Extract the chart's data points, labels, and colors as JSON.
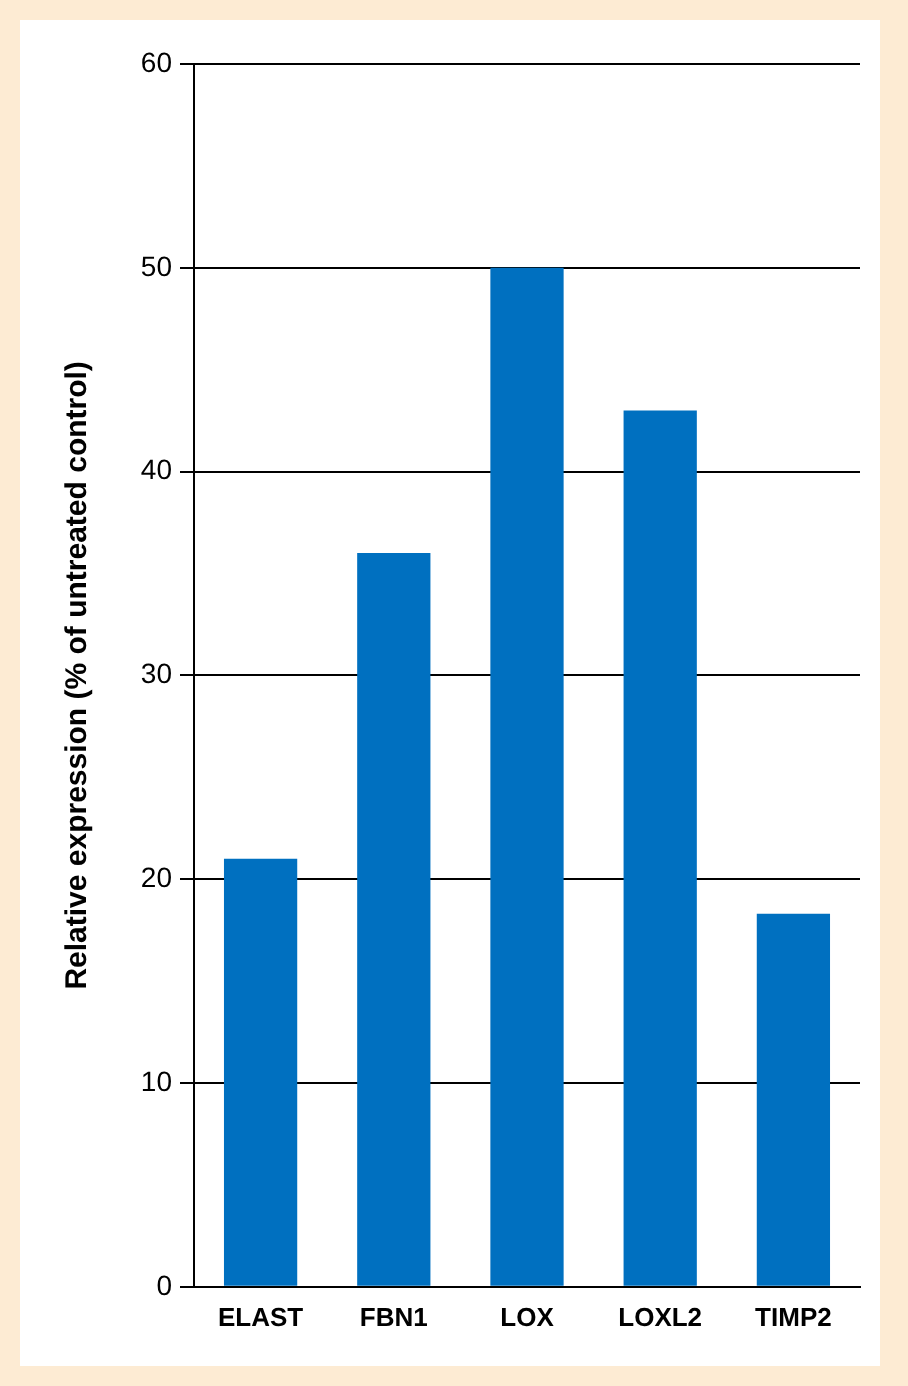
{
  "chart_data": {
    "type": "bar",
    "ylabel": "Relative expression (% of untreated control)",
    "categories": [
      "ELAST",
      "FBN1",
      "LOX",
      "LOXL2",
      "TIMP2"
    ],
    "values": [
      21,
      36,
      50,
      43,
      18.3
    ],
    "color": "#0070c0",
    "ylim": [
      0,
      60
    ],
    "yticks": [
      0,
      10,
      20,
      30,
      40,
      50,
      60
    ],
    "grid": "y",
    "legend": false
  }
}
